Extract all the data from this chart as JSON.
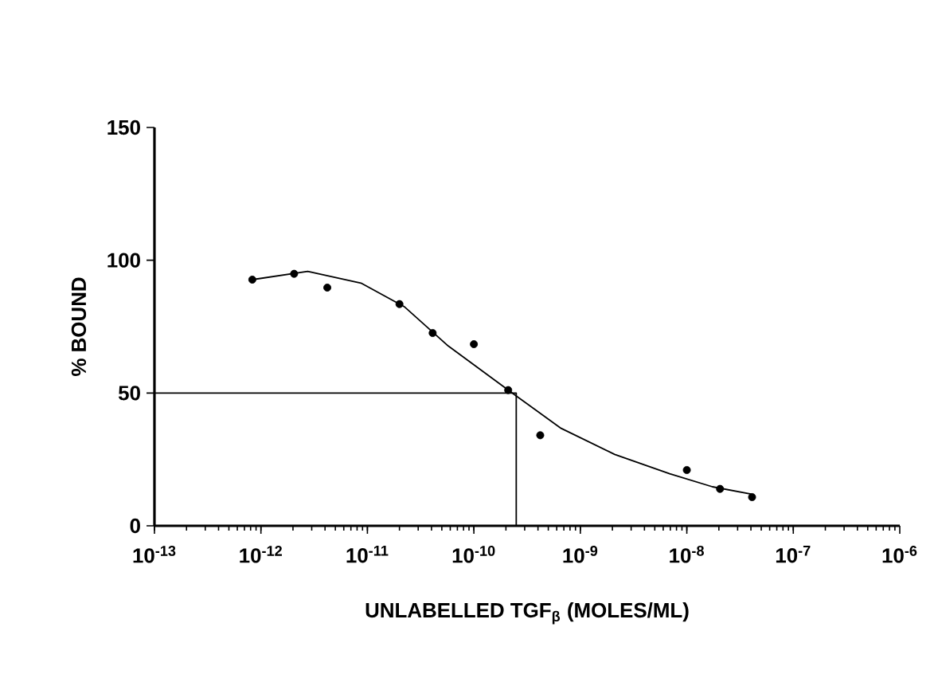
{
  "chart_data": {
    "type": "scatter",
    "xlabel": "UNLABELLED TGF$_{β}$ (MOLES/ML)",
    "ylabel": "% BOUND",
    "log": "x",
    "xlim": [
      1e-13,
      1e-06
    ],
    "ylim": [
      0,
      150
    ],
    "xticks": [
      {
        "value": 1e-13,
        "label": "10$^{-13}$"
      },
      {
        "value": 1e-12,
        "label": "10$^{-12}$"
      },
      {
        "value": 1e-11,
        "label": "10$^{-11}$"
      },
      {
        "value": 1e-10,
        "label": "10$^{-10}$"
      },
      {
        "value": 1e-09,
        "label": "10$^{-9}$"
      },
      {
        "value": 1e-08,
        "label": "10$^{-8}$"
      },
      {
        "value": 1e-07,
        "label": "10$^{-7}$"
      },
      {
        "value": 1e-06,
        "label": "10$^{-6}$"
      }
    ],
    "yticks": [
      0,
      50,
      100,
      150
    ],
    "series": [
      {
        "type": "scatter",
        "marker": "circle",
        "color": "#000000",
        "x": [
          8.3e-13,
          2.05e-12,
          4.2e-12,
          2e-11,
          4.1e-11,
          1e-10,
          2.1e-10,
          4.2e-10,
          1e-08,
          2.05e-08,
          4.1e-08
        ],
        "values": [
          92.7,
          94.9,
          89.7,
          83.5,
          72.6,
          68.4,
          51.1,
          34.1,
          21.0,
          13.9,
          10.8
        ]
      },
      {
        "type": "line",
        "marker": "none",
        "line_style": "solid",
        "color": "#000000",
        "x": [
          8.3e-13,
          2.75e-12,
          8.7e-12,
          2.24e-11,
          5.75e-11,
          2.5e-10,
          6.6e-10,
          2.1e-09,
          6.9e-09,
          1.74e-08,
          4.1e-08
        ],
        "values": [
          92.7,
          95.8,
          91.4,
          82.4,
          67.7,
          48.9,
          36.7,
          26.9,
          19.6,
          14.7,
          11.9
        ]
      },
      {
        "type": "line",
        "marker": "none",
        "line_style": "solid",
        "color": "#000000",
        "x": [
          1e-13,
          2.5e-10,
          2.5e-10
        ],
        "values": [
          50,
          50,
          0
        ]
      }
    ]
  }
}
